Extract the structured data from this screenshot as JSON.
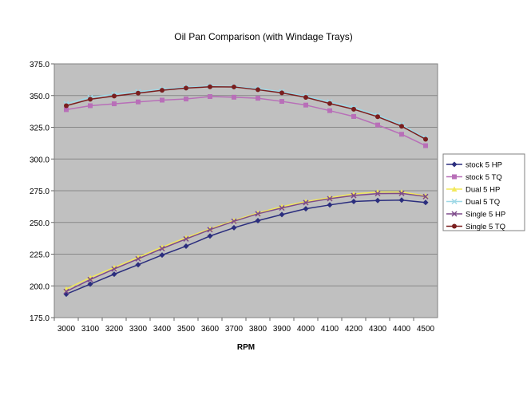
{
  "chart_data": {
    "type": "line",
    "title": "Oil Pan Comparison (with Windage Trays)",
    "xlabel": "RPM",
    "ylabel": "",
    "ylim": [
      175,
      375
    ],
    "yticks": [
      "175.0",
      "200.0",
      "225.0",
      "250.0",
      "275.0",
      "300.0",
      "325.0",
      "350.0",
      "375.0"
    ],
    "grid": true,
    "legend_position": "right",
    "plot_background": "#c0c0c0",
    "categories": [
      "3000",
      "3100",
      "3200",
      "3300",
      "3400",
      "3500",
      "3600",
      "3700",
      "3800",
      "3900",
      "4000",
      "4100",
      "4200",
      "4300",
      "4400",
      "4500"
    ],
    "series": [
      {
        "name": "stock 5 HP",
        "color": "#2b2e7e",
        "marker": "diamond",
        "values": [
          193.5,
          201.4,
          209.2,
          216.7,
          224.3,
          231.3,
          239.3,
          245.8,
          251.4,
          256.2,
          260.8,
          263.8,
          266.5,
          267.3,
          267.6,
          265.7
        ]
      },
      {
        "name": "stock 5 TQ",
        "color": "#b86fb8",
        "marker": "square",
        "values": [
          338.9,
          342.0,
          343.5,
          345.0,
          346.4,
          347.3,
          349.2,
          348.7,
          347.9,
          345.4,
          342.5,
          338.1,
          333.5,
          326.8,
          319.5,
          310.5
        ]
      },
      {
        "name": "Dual 5 HP",
        "color": "#f2e85a",
        "marker": "triangle",
        "values": [
          197.5,
          206.5,
          214.5,
          222.5,
          230.5,
          238.0,
          245.0,
          251.5,
          257.5,
          262.5,
          266.5,
          269.5,
          272.5,
          274.0,
          274.0,
          271.0
        ]
      },
      {
        "name": "Dual 5 TQ",
        "color": "#9ed8e6",
        "marker": "x",
        "values": [
          343.5,
          348.5,
          351.0,
          353.0,
          355.0,
          356.5,
          357.5,
          357.0,
          355.5,
          353.0,
          349.5,
          345.0,
          340.5,
          334.5,
          327.0,
          316.5
        ]
      },
      {
        "name": "Single 5 HP",
        "color": "#7d4a8a",
        "marker": "x",
        "values": [
          195.6,
          205.0,
          213.3,
          221.3,
          229.4,
          237.0,
          244.3,
          250.9,
          256.8,
          261.4,
          265.6,
          268.7,
          271.2,
          272.7,
          272.9,
          270.4
        ]
      },
      {
        "name": "Single 5 TQ",
        "color": "#7a1e1e",
        "marker": "circle",
        "values": [
          342.0,
          347.1,
          349.6,
          351.9,
          354.2,
          355.9,
          356.9,
          356.8,
          354.6,
          352.1,
          348.6,
          343.7,
          339.2,
          333.3,
          325.8,
          315.6
        ]
      }
    ]
  }
}
